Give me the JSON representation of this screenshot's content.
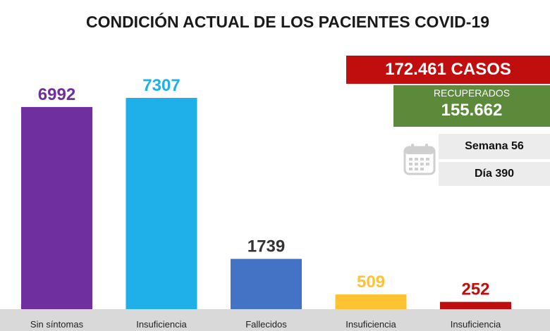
{
  "title": "CONDICIÓN ACTUAL DE LOS PACIENTES COVID-19",
  "casos": "172.461 CASOS",
  "recuperados": {
    "label": "RECUPERADOS",
    "value": "155.662"
  },
  "semana": "Semana 56",
  "dia": "Día 390",
  "icon": "calendar-icon",
  "colors": {
    "casos_bg": "#c00d0d",
    "recuperados_bg": "#5c8a3a",
    "axis": "#d9d9d9"
  },
  "chart_data": {
    "type": "bar",
    "categories": [
      "Sin síntomas",
      "Insuficiencia",
      "Fallecidos",
      "Insuficiencia",
      "Insuficiencia"
    ],
    "values": [
      6992,
      7307,
      1739,
      509,
      252
    ],
    "value_labels": [
      "6992",
      "7307",
      "1739",
      "509",
      "252"
    ],
    "colors": [
      "#6f2f9f",
      "#1fb0ea",
      "#4472c4",
      "#ffc232",
      "#c00d0d"
    ],
    "label_colors": [
      "#6f2f9f",
      "#1fb0ea",
      "#333333",
      "#ffc232",
      "#c00d0d"
    ],
    "ylim": [
      0,
      7307
    ],
    "grid": false,
    "legend": "none"
  }
}
